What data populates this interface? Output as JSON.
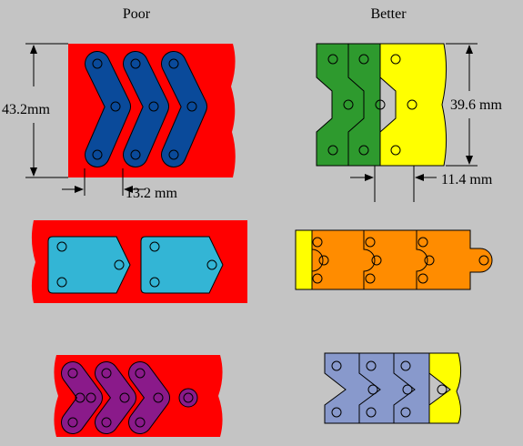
{
  "columns": {
    "poor": "Poor",
    "better": "Better"
  },
  "dimensions": {
    "poor_height": "43.2mm",
    "poor_pitch": "13.2 mm",
    "better_height": "39.6 mm",
    "better_pitch": "11.4 mm"
  }
}
